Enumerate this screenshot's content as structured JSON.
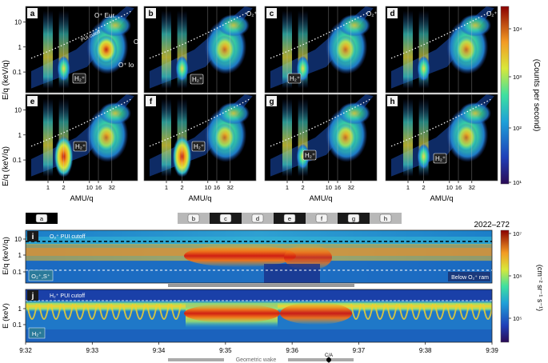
{
  "top_grid": {
    "panel_letters": [
      "a",
      "b",
      "c",
      "d",
      "e",
      "f",
      "g",
      "h"
    ],
    "ylabel": "E/q (keV/q)",
    "xlabel": "AMU/q",
    "y_ticks": [
      "10",
      "1",
      "0.1"
    ],
    "x_ticks": [
      "1",
      "2",
      "10",
      "16",
      "32"
    ],
    "annotations": {
      "o_plus_eur": "O⁺ Eur.",
      "pui_cutoff": "PUI cutoff",
      "o2_plus": "O₂⁺",
      "o_plus_io": "O⁺ Io",
      "h2_plus": "H₂⁺"
    }
  },
  "colorbar_top": {
    "label": "(Counts per second)",
    "ticks": [
      "10⁴",
      "10³",
      "10²",
      "10¹"
    ]
  },
  "time_series": {
    "wake_bar_labels": [
      "a",
      "b",
      "c",
      "d",
      "e",
      "f",
      "g",
      "h"
    ],
    "date": "2022–272",
    "panel_i": {
      "letter": "i",
      "ylabel": "E/q (keV/q)",
      "y_ticks": [
        "10",
        "1",
        "0.1"
      ],
      "pui_label": "O₂⁺ PUI cutoff",
      "species_label": "O₂⁺,S⁺",
      "below_label": "Below O₂⁺ ram"
    },
    "panel_j": {
      "letter": "j",
      "ylabel": "E (keV)",
      "y_ticks": [
        "1",
        "0.1"
      ],
      "pui_label": "H₂⁺ PUI cutoff",
      "species_label": "H₂⁺"
    },
    "x_ticks": [
      "9:32",
      "9:33",
      "9:34",
      "9:35",
      "9:36",
      "9:37",
      "9:38",
      "9:39"
    ],
    "geometric_wake_label": "Geometric wake",
    "ca_label": "C/A"
  },
  "colorbar_bottom": {
    "label": "(cm⁻² sr⁻¹ s⁻¹)",
    "ticks": [
      "10⁷",
      "10⁶",
      "10⁵"
    ]
  }
}
